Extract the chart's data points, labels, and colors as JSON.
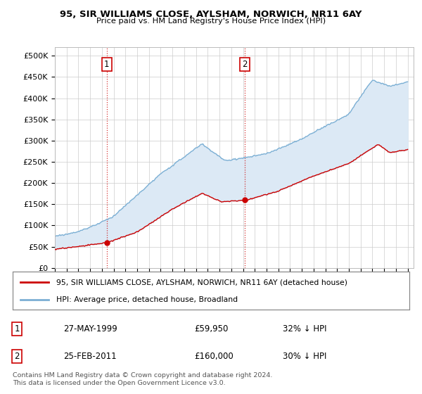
{
  "title": "95, SIR WILLIAMS CLOSE, AYLSHAM, NORWICH, NR11 6AY",
  "subtitle": "Price paid vs. HM Land Registry's House Price Index (HPI)",
  "ylabel_ticks": [
    "£0",
    "£50K",
    "£100K",
    "£150K",
    "£200K",
    "£250K",
    "£300K",
    "£350K",
    "£400K",
    "£450K",
    "£500K"
  ],
  "ytick_values": [
    0,
    50000,
    100000,
    150000,
    200000,
    250000,
    300000,
    350000,
    400000,
    450000,
    500000
  ],
  "ylim": [
    0,
    520000
  ],
  "xlim_start": 1995.0,
  "xlim_end": 2025.5,
  "red_line_color": "#cc0000",
  "blue_line_color": "#7bafd4",
  "fill_color": "#dce9f5",
  "marker_color": "#cc0000",
  "sale1_x": 1999.42,
  "sale1_y": 59950,
  "sale1_label": "1",
  "sale2_x": 2011.15,
  "sale2_y": 160000,
  "sale2_label": "2",
  "vline_color": "#cc0000",
  "vline_style": ":",
  "legend_line1": "95, SIR WILLIAMS CLOSE, AYLSHAM, NORWICH, NR11 6AY (detached house)",
  "legend_line2": "HPI: Average price, detached house, Broadland",
  "table_row1": [
    "1",
    "27-MAY-1999",
    "£59,950",
    "32% ↓ HPI"
  ],
  "table_row2": [
    "2",
    "25-FEB-2011",
    "£160,000",
    "30% ↓ HPI"
  ],
  "footer": "Contains HM Land Registry data © Crown copyright and database right 2024.\nThis data is licensed under the Open Government Licence v3.0.",
  "background_color": "#ffffff",
  "grid_color": "#cccccc"
}
